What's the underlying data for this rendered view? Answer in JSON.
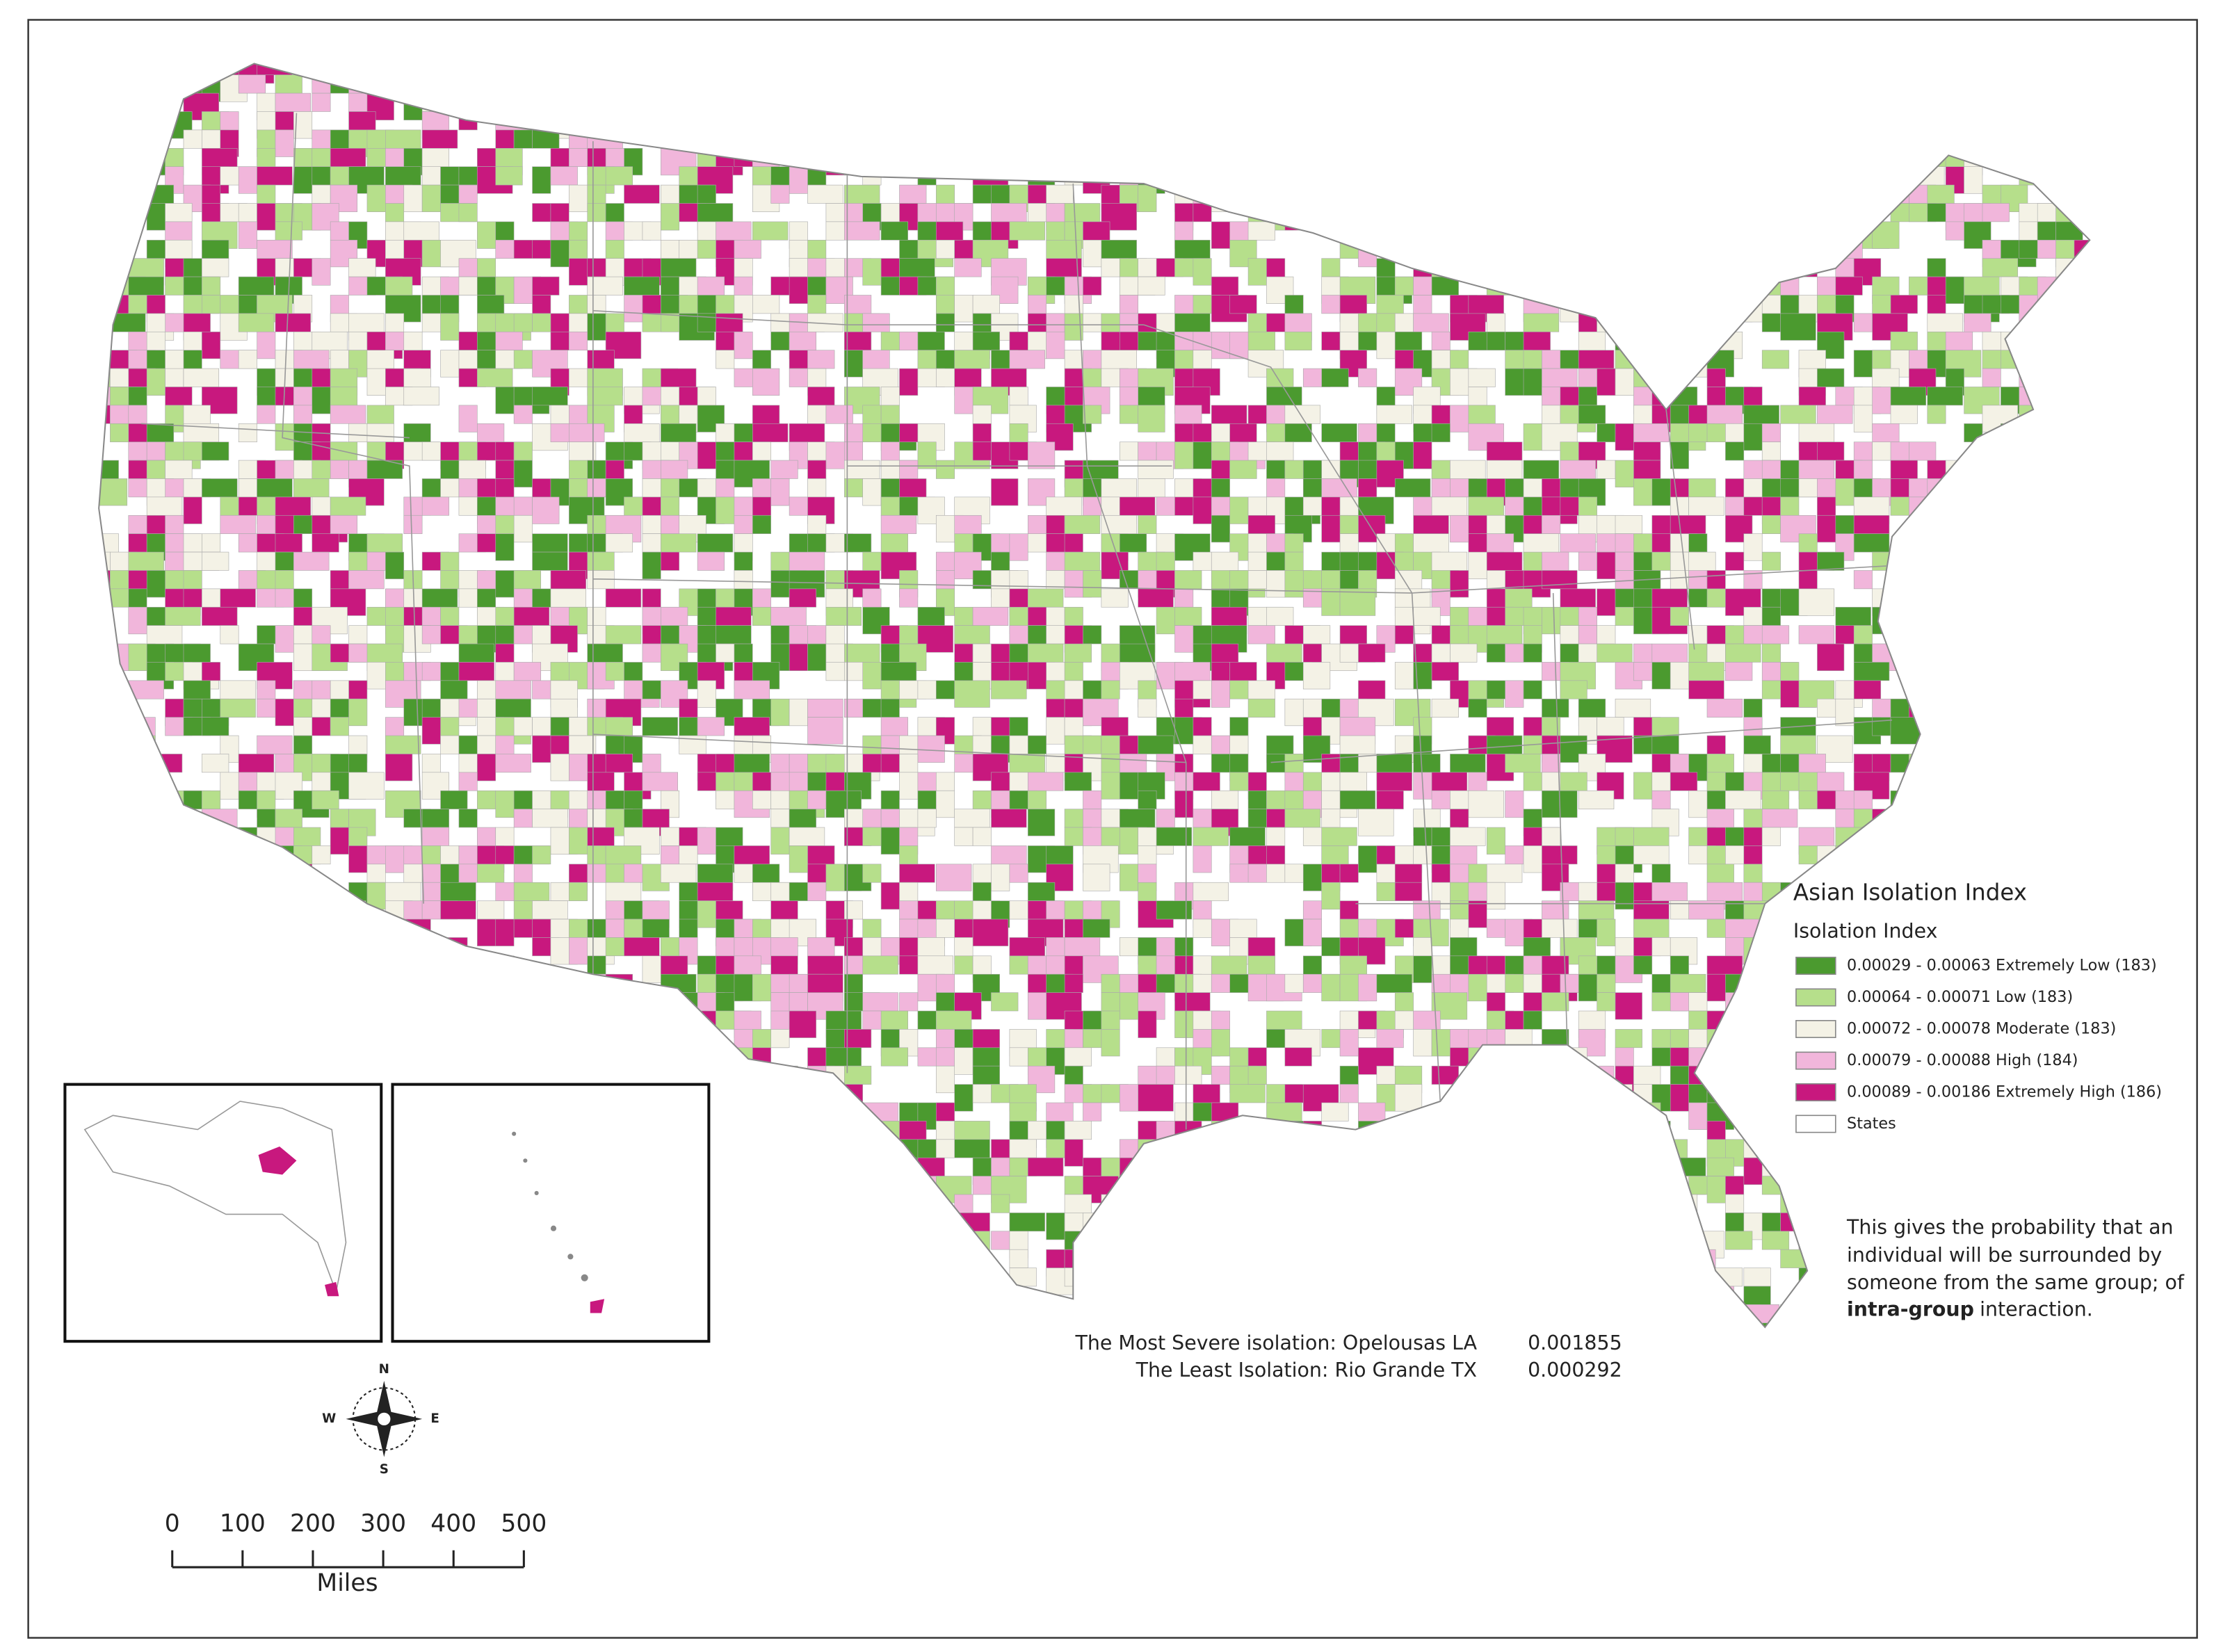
{
  "map": {
    "legend": {
      "title": "Asian Isolation Index",
      "subtitle": "Isolation Index",
      "items": [
        {
          "label": "0.00029 - 0.00063  Extremely Low (183)",
          "color": "#4b9a2f"
        },
        {
          "label": "0.00064 - 0.00071  Low (183)",
          "color": "#b6df8b"
        },
        {
          "label": "0.00072 - 0.00078  Moderate (183)",
          "color": "#f4f2e6"
        },
        {
          "label": "0.00079 - 0.00088  High (184)",
          "color": "#f1b6db"
        },
        {
          "label": "0.00089 - 0.00186  Extremely High (186)",
          "color": "#c8187e"
        },
        {
          "label": "States",
          "color": "#ffffff"
        }
      ]
    },
    "note": {
      "lines": [
        "This gives the probability that an",
        "individual will be surrounded by",
        "someone from the same group; of"
      ],
      "bold": "intra-group",
      "tail": "interaction."
    },
    "stats": [
      {
        "label": "The Most Severe isolation: Opelousas LA",
        "value": "0.001855"
      },
      {
        "label": "The Least Isolation: Rio Grande TX",
        "value": "0.000292"
      }
    ],
    "compass": {
      "n": "N",
      "e": "E",
      "s": "S",
      "w": "W"
    },
    "scale_bar": {
      "ticks": [
        "0",
        "100",
        "200",
        "300",
        "400",
        "500"
      ],
      "unit": "Miles"
    }
  }
}
